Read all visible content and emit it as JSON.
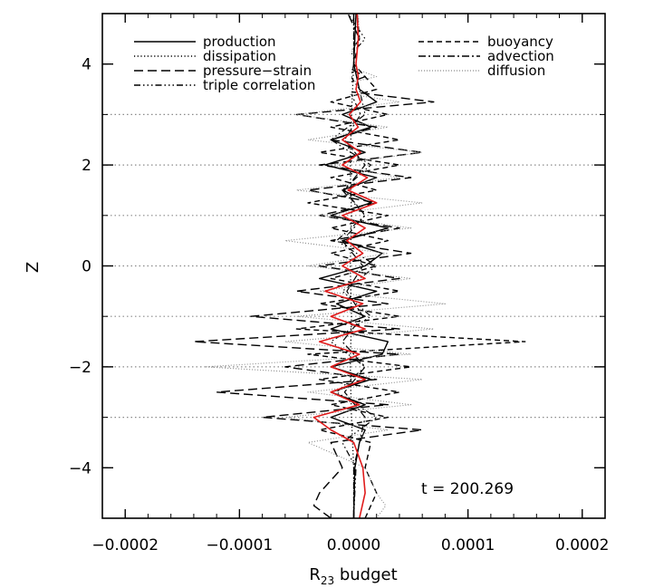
{
  "chart_data": {
    "type": "line",
    "xlabel_main": "R",
    "xlabel_sub": "23",
    "xlabel_rest": " budget",
    "ylabel": "Z",
    "annotation": "t  =  200.269",
    "xlim": [
      -0.00022,
      0.00022
    ],
    "ylim": [
      -5,
      5
    ],
    "x_ticks": [
      -0.0002,
      -0.0001,
      0.0,
      0.0001,
      0.0002
    ],
    "x_tick_labels": [
      "−0.0002",
      "−0.0001",
      "0.0000",
      "0.0001",
      "0.0002"
    ],
    "y_ticks": [
      -4,
      -2,
      0,
      2,
      4
    ],
    "y_tick_labels": [
      "−4",
      "−2",
      "0",
      "2",
      "4"
    ],
    "reference_lines_z": [
      -3,
      -2,
      -1,
      0,
      1,
      2,
      3
    ],
    "series": [
      {
        "name": "production",
        "dash": "",
        "color": "#000000",
        "width": 1.4,
        "z": [
          -5.0,
          -4.0,
          -3.5,
          -3.25,
          -3.0,
          -2.75,
          -2.5,
          -2.25,
          -2.0,
          -1.75,
          -1.5,
          -1.25,
          -1.0,
          -0.75,
          -0.5,
          -0.25,
          0.0,
          0.25,
          0.5,
          0.75,
          1.0,
          1.25,
          1.5,
          1.75,
          2.0,
          2.25,
          2.5,
          2.75,
          3.0,
          3.25,
          3.5,
          4.0,
          5.0
        ],
        "x": [
          0.0,
          1e-06,
          5e-06,
          1e-05,
          -2e-05,
          1e-05,
          -2e-05,
          1.5e-05,
          -2e-05,
          2.5e-05,
          3e-05,
          -2e-05,
          1e-05,
          -1.5e-05,
          2e-05,
          -3e-05,
          1e-05,
          2.5e-05,
          -1e-05,
          3e-05,
          -2e-05,
          1.5e-05,
          -1e-05,
          2e-05,
          -2.5e-05,
          1e-05,
          -2e-05,
          1.5e-05,
          -1e-05,
          2e-05,
          5e-06,
          0.0,
          2e-06
        ]
      },
      {
        "name": "dissipation",
        "dash": "1.2 2.5",
        "color": "#000000",
        "width": 1.3,
        "z": [
          -5.0,
          -4.0,
          -3.0,
          -2.0,
          -1.0,
          0.0,
          1.0,
          2.0,
          3.0,
          4.0,
          5.0
        ],
        "x": [
          0.0,
          0.0,
          -2e-06,
          -3e-06,
          -2e-06,
          -3e-06,
          -2e-06,
          -3e-06,
          -2e-06,
          0.0,
          0.0
        ]
      },
      {
        "name": "pressure-strain",
        "dash": "10 5",
        "color": "#000000",
        "width": 1.4,
        "z": [
          -5.0,
          -4.75,
          -4.5,
          -4.0,
          -3.5,
          -3.25,
          -3.0,
          -2.75,
          -2.5,
          -2.25,
          -2.0,
          -1.75,
          -1.5,
          -1.25,
          -1.0,
          -0.75,
          -0.5,
          -0.25,
          0.0,
          0.25,
          0.5,
          0.75,
          1.0,
          1.25,
          1.5,
          1.75,
          2.0,
          2.25,
          2.5,
          2.75,
          3.0,
          3.25,
          3.5,
          3.75,
          4.0,
          4.5,
          5.0
        ],
        "x": [
          -2e-05,
          -3.5e-05,
          -3e-05,
          -1e-05,
          -2e-05,
          6e-05,
          -8e-05,
          3e-05,
          -0.00012,
          2e-05,
          -6e-05,
          4e-05,
          -0.00014,
          4e-05,
          -9e-05,
          3e-05,
          -5e-05,
          4e-05,
          -3e-05,
          5e-05,
          -2e-05,
          4e-05,
          -3e-05,
          2e-05,
          -4e-05,
          5e-05,
          -3e-05,
          6e-05,
          -2e-05,
          2e-05,
          -5e-05,
          7e-05,
          -2e-05,
          1e-05,
          -1e-05,
          5e-06,
          -5e-06
        ]
      },
      {
        "name": "triple correlation",
        "dash": "7 3 1.5 3 1.5 3 1.5 3",
        "color": "#000000",
        "width": 1.2,
        "z": [
          -5.0,
          -4.0,
          -3.5,
          -3.0,
          -2.5,
          -2.0,
          -1.5,
          -1.0,
          -0.5,
          0.0,
          0.5,
          1.0,
          1.5,
          2.0,
          2.5,
          3.0,
          3.5,
          4.0,
          4.5,
          5.0
        ],
        "x": [
          0.0,
          2e-06,
          -1e-05,
          2e-05,
          -1.5e-05,
          1e-05,
          -2e-05,
          1.5e-05,
          -1e-05,
          2e-05,
          -1.5e-05,
          1e-05,
          -1e-05,
          1.5e-05,
          -2e-05,
          1e-05,
          5e-06,
          -1e-05,
          1e-05,
          -5e-06
        ]
      },
      {
        "name": "buoyancy",
        "dash": "6 4",
        "color": "#000000",
        "width": 1.4,
        "z": [
          -5.0,
          -4.5,
          -4.0,
          -3.5,
          -3.25,
          -3.0,
          -2.75,
          -2.5,
          -2.25,
          -2.0,
          -1.75,
          -1.5,
          -1.25,
          -1.0,
          -0.75,
          -0.5,
          -0.25,
          0.0,
          0.25,
          0.5,
          0.75,
          1.0,
          1.25,
          1.5,
          1.75,
          2.0,
          2.25,
          2.5,
          2.75,
          3.0,
          3.25,
          3.5,
          4.0,
          4.5,
          5.0
        ],
        "x": [
          1e-05,
          2e-05,
          1e-05,
          1.5e-05,
          -3e-05,
          3e-05,
          -2e-05,
          4e-05,
          -3e-05,
          5e-05,
          -4e-05,
          0.00015,
          -5e-05,
          4e-05,
          -3e-05,
          4e-05,
          -2e-05,
          2e-05,
          -2e-05,
          3e-05,
          -2e-05,
          3e-05,
          -4e-05,
          2e-05,
          -2e-05,
          4e-05,
          -3e-05,
          4e-05,
          -2e-05,
          3e-05,
          -2e-05,
          2e-05,
          0.0,
          5e-06,
          3e-06
        ]
      },
      {
        "name": "advection",
        "dash": "8 3 2 3",
        "color": "#000000",
        "width": 1.2,
        "z": [
          -5.0,
          -4.0,
          -3.0,
          -2.5,
          -2.0,
          -1.5,
          -1.0,
          -0.5,
          0.0,
          0.5,
          1.0,
          1.5,
          2.0,
          2.5,
          3.0,
          3.5,
          4.0,
          5.0
        ],
        "x": [
          0.0,
          0.0,
          1e-05,
          -8e-06,
          1e-05,
          -1e-05,
          8e-06,
          -6e-06,
          8e-06,
          -1e-05,
          1e-05,
          -8e-06,
          1e-05,
          -8e-06,
          6e-06,
          -4e-06,
          0.0,
          0.0
        ]
      },
      {
        "name": "diffusion",
        "dash": "1 2",
        "color": "#8a8a8a",
        "width": 1.1,
        "z": [
          -5.0,
          -4.75,
          -4.5,
          -4.0,
          -3.5,
          -3.25,
          -3.0,
          -2.75,
          -2.5,
          -2.25,
          -2.0,
          -1.75,
          -1.5,
          -1.25,
          -1.0,
          -0.75,
          -0.5,
          -0.25,
          0.0,
          0.25,
          0.5,
          0.75,
          1.0,
          1.25,
          1.5,
          1.75,
          2.0,
          2.25,
          2.5,
          2.75,
          3.0,
          3.25,
          3.5,
          3.75,
          4.0,
          4.5,
          5.0
        ],
        "x": [
          2e-05,
          2.8e-05,
          2e-05,
          1e-05,
          -4e-05,
          3e-05,
          -6e-05,
          5e-05,
          -4e-05,
          6e-05,
          -0.00013,
          5e-05,
          -6e-05,
          7e-05,
          -5e-05,
          8e-05,
          -3e-05,
          5e-05,
          -4e-05,
          3e-05,
          -6e-05,
          5e-05,
          -3e-05,
          6e-05,
          -5e-05,
          4e-05,
          -2e-05,
          6e-05,
          -4e-05,
          3e-05,
          -5e-05,
          4e-05,
          -3e-05,
          2e-05,
          -1e-05,
          5e-06,
          4e-06
        ]
      },
      {
        "name": "",
        "dash": "",
        "color": "#e01b1b",
        "width": 1.6,
        "z": [
          -5.0,
          -4.5,
          -4.0,
          -3.5,
          -3.25,
          -3.0,
          -2.75,
          -2.5,
          -2.25,
          -2.0,
          -1.75,
          -1.5,
          -1.25,
          -1.0,
          -0.75,
          -0.5,
          -0.25,
          0.0,
          0.25,
          0.5,
          0.75,
          1.0,
          1.25,
          1.5,
          1.75,
          2.0,
          2.25,
          2.5,
          2.75,
          3.0,
          3.25,
          3.5,
          3.75,
          4.0,
          4.5,
          5.0
        ],
        "x": [
          5e-06,
          1e-05,
          8e-06,
          0.0,
          -2e-05,
          -3.5e-05,
          5e-06,
          -2e-05,
          1e-05,
          -2e-05,
          5e-06,
          -3e-05,
          1e-05,
          -2e-05,
          8e-06,
          -2.5e-05,
          1e-05,
          -1e-05,
          8e-06,
          -6e-06,
          1e-05,
          -1e-05,
          2e-05,
          -5e-06,
          1.2e-05,
          -1e-05,
          6e-06,
          -1e-05,
          4e-06,
          -4e-06,
          6e-06,
          2e-06,
          4e-06,
          2e-06,
          4e-06,
          3e-06
        ]
      }
    ],
    "legend_left": [
      {
        "label": "production",
        "series": 0
      },
      {
        "label": "dissipation",
        "series": 1
      },
      {
        "label": "pressure−strain",
        "series": 2
      },
      {
        "label": "triple correlation",
        "series": 3
      }
    ],
    "legend_right": [
      {
        "label": "buoyancy",
        "series": 4
      },
      {
        "label": "advection",
        "series": 5
      },
      {
        "label": "diffusion",
        "series": 6
      }
    ]
  }
}
